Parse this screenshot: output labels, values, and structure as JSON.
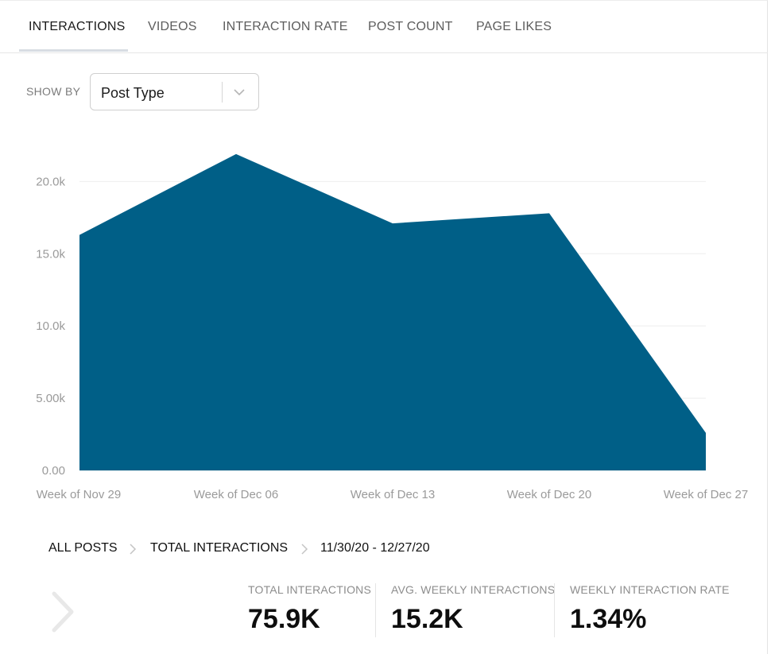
{
  "tabs": [
    {
      "label": "INTERACTIONS",
      "active": true
    },
    {
      "label": "VIDEOS",
      "active": false
    },
    {
      "label": "INTERACTION RATE",
      "active": false
    },
    {
      "label": "POST COUNT",
      "active": false
    },
    {
      "label": "PAGE LIKES",
      "active": false
    }
  ],
  "filter": {
    "label": "SHOW BY",
    "selected": "Post Type",
    "icon": "chevron-down-icon"
  },
  "chart_data": {
    "type": "area",
    "categories": [
      "Week of Nov 29",
      "Week of Dec 06",
      "Week of Dec 13",
      "Week of Dec 20",
      "Week of Dec 27"
    ],
    "series": [
      {
        "values": [
          16300,
          21900,
          17100,
          17800,
          2600
        ]
      }
    ],
    "y_ticks": [
      "0.00",
      "5.00k",
      "10.0k",
      "15.0k",
      "20.0k"
    ],
    "ylim": [
      0,
      22000
    ],
    "grid": true,
    "legend": "none",
    "colors": {
      "fill": "#005f87",
      "grid": "#eeeeee"
    }
  },
  "breadcrumb": {
    "items": [
      "ALL POSTS",
      "TOTAL INTERACTIONS",
      "11/30/20 - 12/27/20"
    ],
    "separator_icon": "chevron-right-icon"
  },
  "nav": {
    "prev_icon": "chevron-left-icon"
  },
  "stats": [
    {
      "label": "TOTAL INTERACTIONS",
      "value": "75.9K"
    },
    {
      "label": "AVG. WEEKLY INTERACTIONS",
      "value": "15.2K"
    },
    {
      "label": "WEEKLY INTERACTION RATE",
      "value": "1.34%"
    }
  ]
}
